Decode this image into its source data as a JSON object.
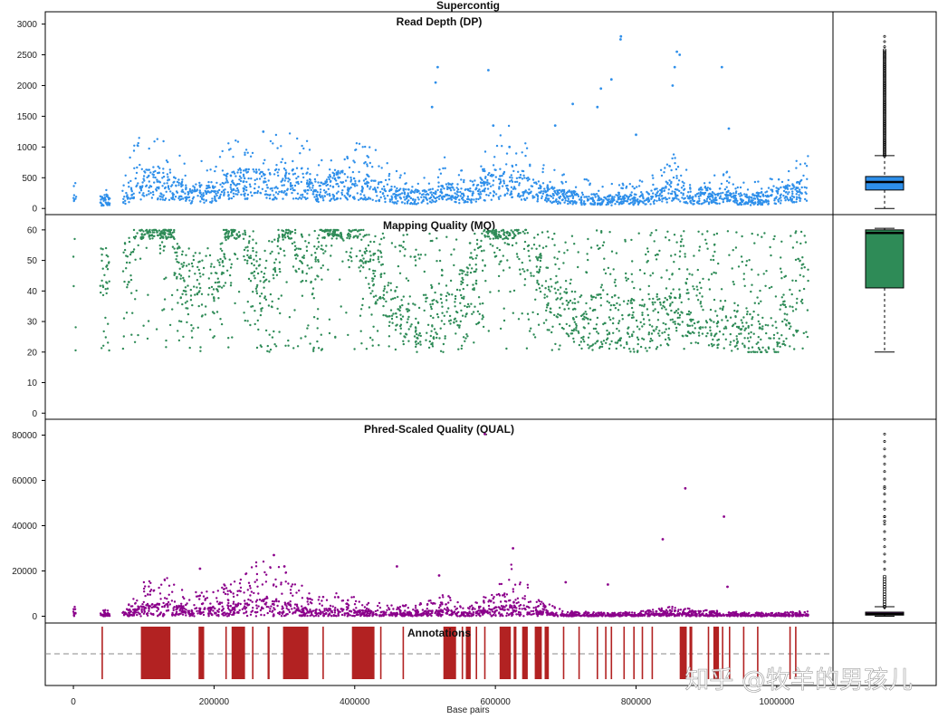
{
  "watermark": "知乎 @牧羊的男孩儿",
  "colors": {
    "dp": "#2e8fea",
    "mq": "#2e8b57",
    "qual": "#8b008b",
    "annot": "#b22222",
    "qual_box": "#a040c0"
  },
  "chart_data": {
    "type": "scatter",
    "title": "Supercontig",
    "xlabel": "Base pairs",
    "xlim": [
      -40000,
      1080000
    ],
    "x_ticks": [
      0,
      200000,
      400000,
      600000,
      800000,
      1000000
    ],
    "x_tick_labels": [
      "0",
      "200000",
      "400000",
      "600000",
      "800000",
      "1000000"
    ],
    "panels": [
      {
        "id": "dp",
        "title": "Read Depth (DP)",
        "ylim": [
          -100,
          3200
        ],
        "y_ticks": [
          0,
          500,
          1000,
          1500,
          2000,
          2500,
          3000
        ],
        "y_tick_labels": [
          "0",
          "500",
          "1000",
          "1500",
          "2000",
          "2500",
          "3000"
        ],
        "profile": [
          [
            0,
            400
          ],
          [
            40000,
            150
          ],
          [
            75000,
            250
          ],
          [
            85000,
            420
          ],
          [
            100000,
            490
          ],
          [
            140000,
            420
          ],
          [
            165000,
            260
          ],
          [
            180000,
            330
          ],
          [
            200000,
            250
          ],
          [
            215000,
            420
          ],
          [
            240000,
            480
          ],
          [
            270000,
            470
          ],
          [
            310000,
            500
          ],
          [
            335000,
            480
          ],
          [
            350000,
            300
          ],
          [
            370000,
            450
          ],
          [
            400000,
            460
          ],
          [
            430000,
            380
          ],
          [
            460000,
            250
          ],
          [
            500000,
            220
          ],
          [
            530000,
            350
          ],
          [
            560000,
            230
          ],
          [
            585000,
            420
          ],
          [
            610000,
            520
          ],
          [
            625000,
            560
          ],
          [
            650000,
            380
          ],
          [
            680000,
            260
          ],
          [
            720000,
            200
          ],
          [
            760000,
            160
          ],
          [
            800000,
            180
          ],
          [
            840000,
            260
          ],
          [
            855000,
            420
          ],
          [
            880000,
            220
          ],
          [
            920000,
            260
          ],
          [
            960000,
            170
          ],
          [
            1000000,
            240
          ],
          [
            1045000,
            360
          ]
        ],
        "spikes": [
          [
            270000,
            1250
          ],
          [
            510000,
            1650
          ],
          [
            515000,
            2050
          ],
          [
            518000,
            2300
          ],
          [
            590000,
            2250
          ],
          [
            597000,
            1350
          ],
          [
            620000,
            1000
          ],
          [
            685000,
            1350
          ],
          [
            710000,
            1700
          ],
          [
            745000,
            1650
          ],
          [
            750000,
            1950
          ],
          [
            765000,
            2100
          ],
          [
            778000,
            2750
          ],
          [
            778500,
            2800
          ],
          [
            800000,
            1200
          ],
          [
            852000,
            2000
          ],
          [
            855000,
            2300
          ],
          [
            858000,
            2550
          ],
          [
            862000,
            2500
          ],
          [
            922000,
            2300
          ],
          [
            932000,
            1300
          ]
        ],
        "box": {
          "min": 0,
          "q1": 300,
          "median": 430,
          "q3": 520,
          "whisker_high": 860,
          "outliers_top": 2800
        }
      },
      {
        "id": "mq",
        "title": "Mapping Quality (MQ)",
        "ylim": [
          -2,
          65
        ],
        "y_ticks": [
          0,
          10,
          20,
          30,
          40,
          50,
          60
        ],
        "y_tick_labels": [
          "0",
          "10",
          "20",
          "30",
          "40",
          "50",
          "60"
        ],
        "profile": [
          [
            0,
            50
          ],
          [
            40000,
            45
          ],
          [
            85000,
            52
          ],
          [
            100000,
            58
          ],
          [
            140000,
            60
          ],
          [
            155000,
            40
          ],
          [
            180000,
            45
          ],
          [
            200000,
            40
          ],
          [
            215000,
            55
          ],
          [
            240000,
            58
          ],
          [
            270000,
            40
          ],
          [
            300000,
            58
          ],
          [
            340000,
            45
          ],
          [
            360000,
            58
          ],
          [
            400000,
            58
          ],
          [
            440000,
            40
          ],
          [
            480000,
            28
          ],
          [
            520000,
            30
          ],
          [
            560000,
            40
          ],
          [
            590000,
            58
          ],
          [
            640000,
            55
          ],
          [
            680000,
            40
          ],
          [
            720000,
            30
          ],
          [
            760000,
            30
          ],
          [
            800000,
            28
          ],
          [
            840000,
            30
          ],
          [
            880000,
            35
          ],
          [
            920000,
            30
          ],
          [
            960000,
            25
          ],
          [
            1000000,
            22
          ],
          [
            1030000,
            45
          ],
          [
            1045000,
            40
          ]
        ],
        "box": {
          "min": 20,
          "q1": 41,
          "median": 59,
          "q3": 60,
          "whisker_high": 60.5
        }
      },
      {
        "id": "qual",
        "title": "Phred-Scaled Quality (QUAL)",
        "ylim": [
          -3000,
          87000
        ],
        "y_ticks": [
          0,
          20000,
          40000,
          60000,
          80000
        ],
        "y_tick_labels": [
          "0",
          "20000",
          "40000",
          "60000",
          "80000"
        ],
        "profile": [
          [
            0,
            1500
          ],
          [
            40000,
            800
          ],
          [
            80000,
            2000
          ],
          [
            100000,
            5000
          ],
          [
            130000,
            6000
          ],
          [
            160000,
            3500
          ],
          [
            200000,
            4000
          ],
          [
            240000,
            6000
          ],
          [
            270000,
            9000
          ],
          [
            300000,
            7000
          ],
          [
            340000,
            3000
          ],
          [
            370000,
            3500
          ],
          [
            420000,
            2500
          ],
          [
            460000,
            1500
          ],
          [
            500000,
            2200
          ],
          [
            530000,
            3500
          ],
          [
            560000,
            1200
          ],
          [
            600000,
            4000
          ],
          [
            625000,
            8000
          ],
          [
            660000,
            2500
          ],
          [
            700000,
            800
          ],
          [
            760000,
            500
          ],
          [
            800000,
            700
          ],
          [
            850000,
            1500
          ],
          [
            900000,
            900
          ],
          [
            950000,
            600
          ],
          [
            1000000,
            500
          ],
          [
            1045000,
            800
          ]
        ],
        "spikes": [
          [
            585000,
            80500
          ],
          [
            870000,
            56500
          ],
          [
            925000,
            44000
          ],
          [
            838000,
            34000
          ],
          [
            625000,
            30000
          ],
          [
            285000,
            27000
          ],
          [
            460000,
            22000
          ],
          [
            520000,
            18000
          ],
          [
            180000,
            21000
          ],
          [
            300000,
            22000
          ],
          [
            700000,
            15000
          ],
          [
            760000,
            14000
          ],
          [
            930000,
            13000
          ]
        ],
        "box": {
          "min": 0,
          "q1": 500,
          "median": 1000,
          "q3": 1800,
          "whisker_high": 4200,
          "outliers_top": 80500,
          "outlier_values": [
            56500,
            44000,
            42000
          ]
        }
      }
    ],
    "annotations": {
      "title": "Annotations",
      "baseline": "dashed",
      "intervals": [
        [
          40000,
          42000
        ],
        [
          96000,
          138000
        ],
        [
          178000,
          186000
        ],
        [
          216000,
          218000
        ],
        [
          225000,
          244000
        ],
        [
          254000,
          256000
        ],
        [
          276000,
          279000
        ],
        [
          298000,
          334000
        ],
        [
          354000,
          356000
        ],
        [
          396000,
          428000
        ],
        [
          436000,
          438000
        ],
        [
          468000,
          470000
        ],
        [
          526000,
          544000
        ],
        [
          552000,
          554000
        ],
        [
          558000,
          565000
        ],
        [
          572000,
          574000
        ],
        [
          584000,
          586000
        ],
        [
          606000,
          622000
        ],
        [
          626000,
          630000
        ],
        [
          638000,
          646000
        ],
        [
          656000,
          666000
        ],
        [
          670000,
          676000
        ],
        [
          696000,
          698000
        ],
        [
          718000,
          720000
        ],
        [
          744000,
          746000
        ],
        [
          756000,
          758000
        ],
        [
          764000,
          766000
        ],
        [
          782000,
          784000
        ],
        [
          796000,
          798000
        ],
        [
          808000,
          810000
        ],
        [
          822000,
          824000
        ],
        [
          862000,
          872000
        ],
        [
          876000,
          880000
        ],
        [
          902000,
          904000
        ],
        [
          910000,
          918000
        ],
        [
          922000,
          924000
        ],
        [
          932000,
          934000
        ],
        [
          952000,
          954000
        ],
        [
          972000,
          974000
        ],
        [
          1018000,
          1020000
        ],
        [
          1026000,
          1028000
        ]
      ]
    }
  }
}
